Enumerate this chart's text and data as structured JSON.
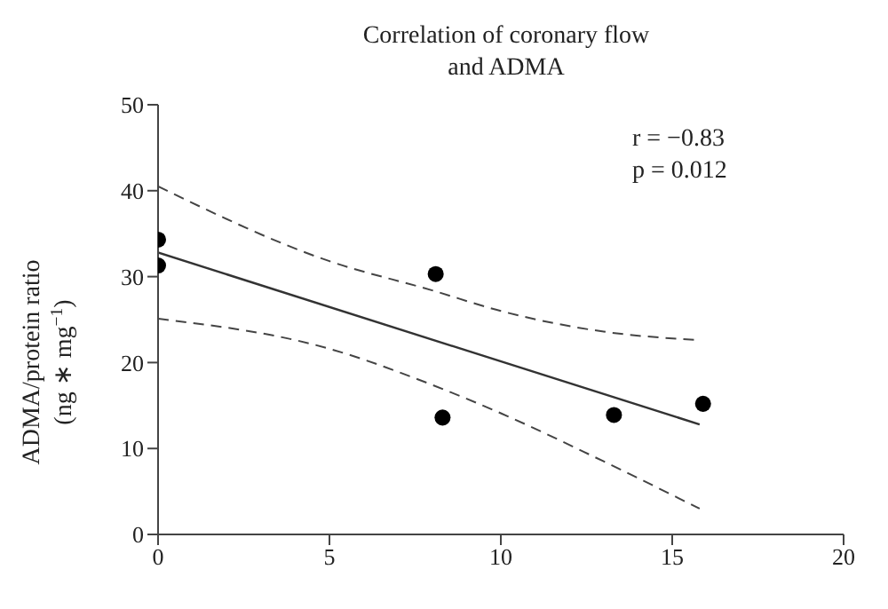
{
  "chart_data": {
    "type": "scatter",
    "title": "Correlation of coronary flow\nand ADMA",
    "ylabel": "ADMA/protein ratio\n(ng ∗ mg$^{−1}$)",
    "annotations": [
      "r = −0.83",
      "p = 0.012"
    ],
    "xlim": [
      0,
      20
    ],
    "xticks": [
      0,
      5,
      10,
      15,
      20
    ],
    "ylim": [
      0,
      50
    ],
    "yticks": [
      0,
      10,
      20,
      30,
      40,
      50
    ],
    "marker": "circle",
    "series": [
      {
        "type": "line",
        "color": "#333333",
        "line_style": "solid",
        "marker": "none",
        "x": [
          0,
          15.8
        ],
        "values": [
          32.8,
          12.8
        ]
      },
      {
        "type": "line",
        "color": "#444444",
        "line_style": "dashed",
        "marker": "none",
        "x": [
          0,
          5,
          8,
          10,
          13,
          15.8
        ],
        "values": [
          40.5,
          31.8,
          28.4,
          26.0,
          23.6,
          22.6
        ]
      },
      {
        "type": "line",
        "color": "#444444",
        "line_style": "dashed",
        "marker": "none",
        "x": [
          0,
          5,
          8,
          10,
          13,
          15.8
        ],
        "values": [
          25.1,
          21.6,
          17.4,
          14.1,
          8.5,
          3.0
        ]
      },
      {
        "color": "#000000",
        "x": [
          0,
          0,
          8.1,
          8.3,
          13.3,
          15.9
        ],
        "values": [
          34.3,
          31.3,
          30.3,
          13.6,
          13.9,
          15.2
        ]
      }
    ]
  }
}
